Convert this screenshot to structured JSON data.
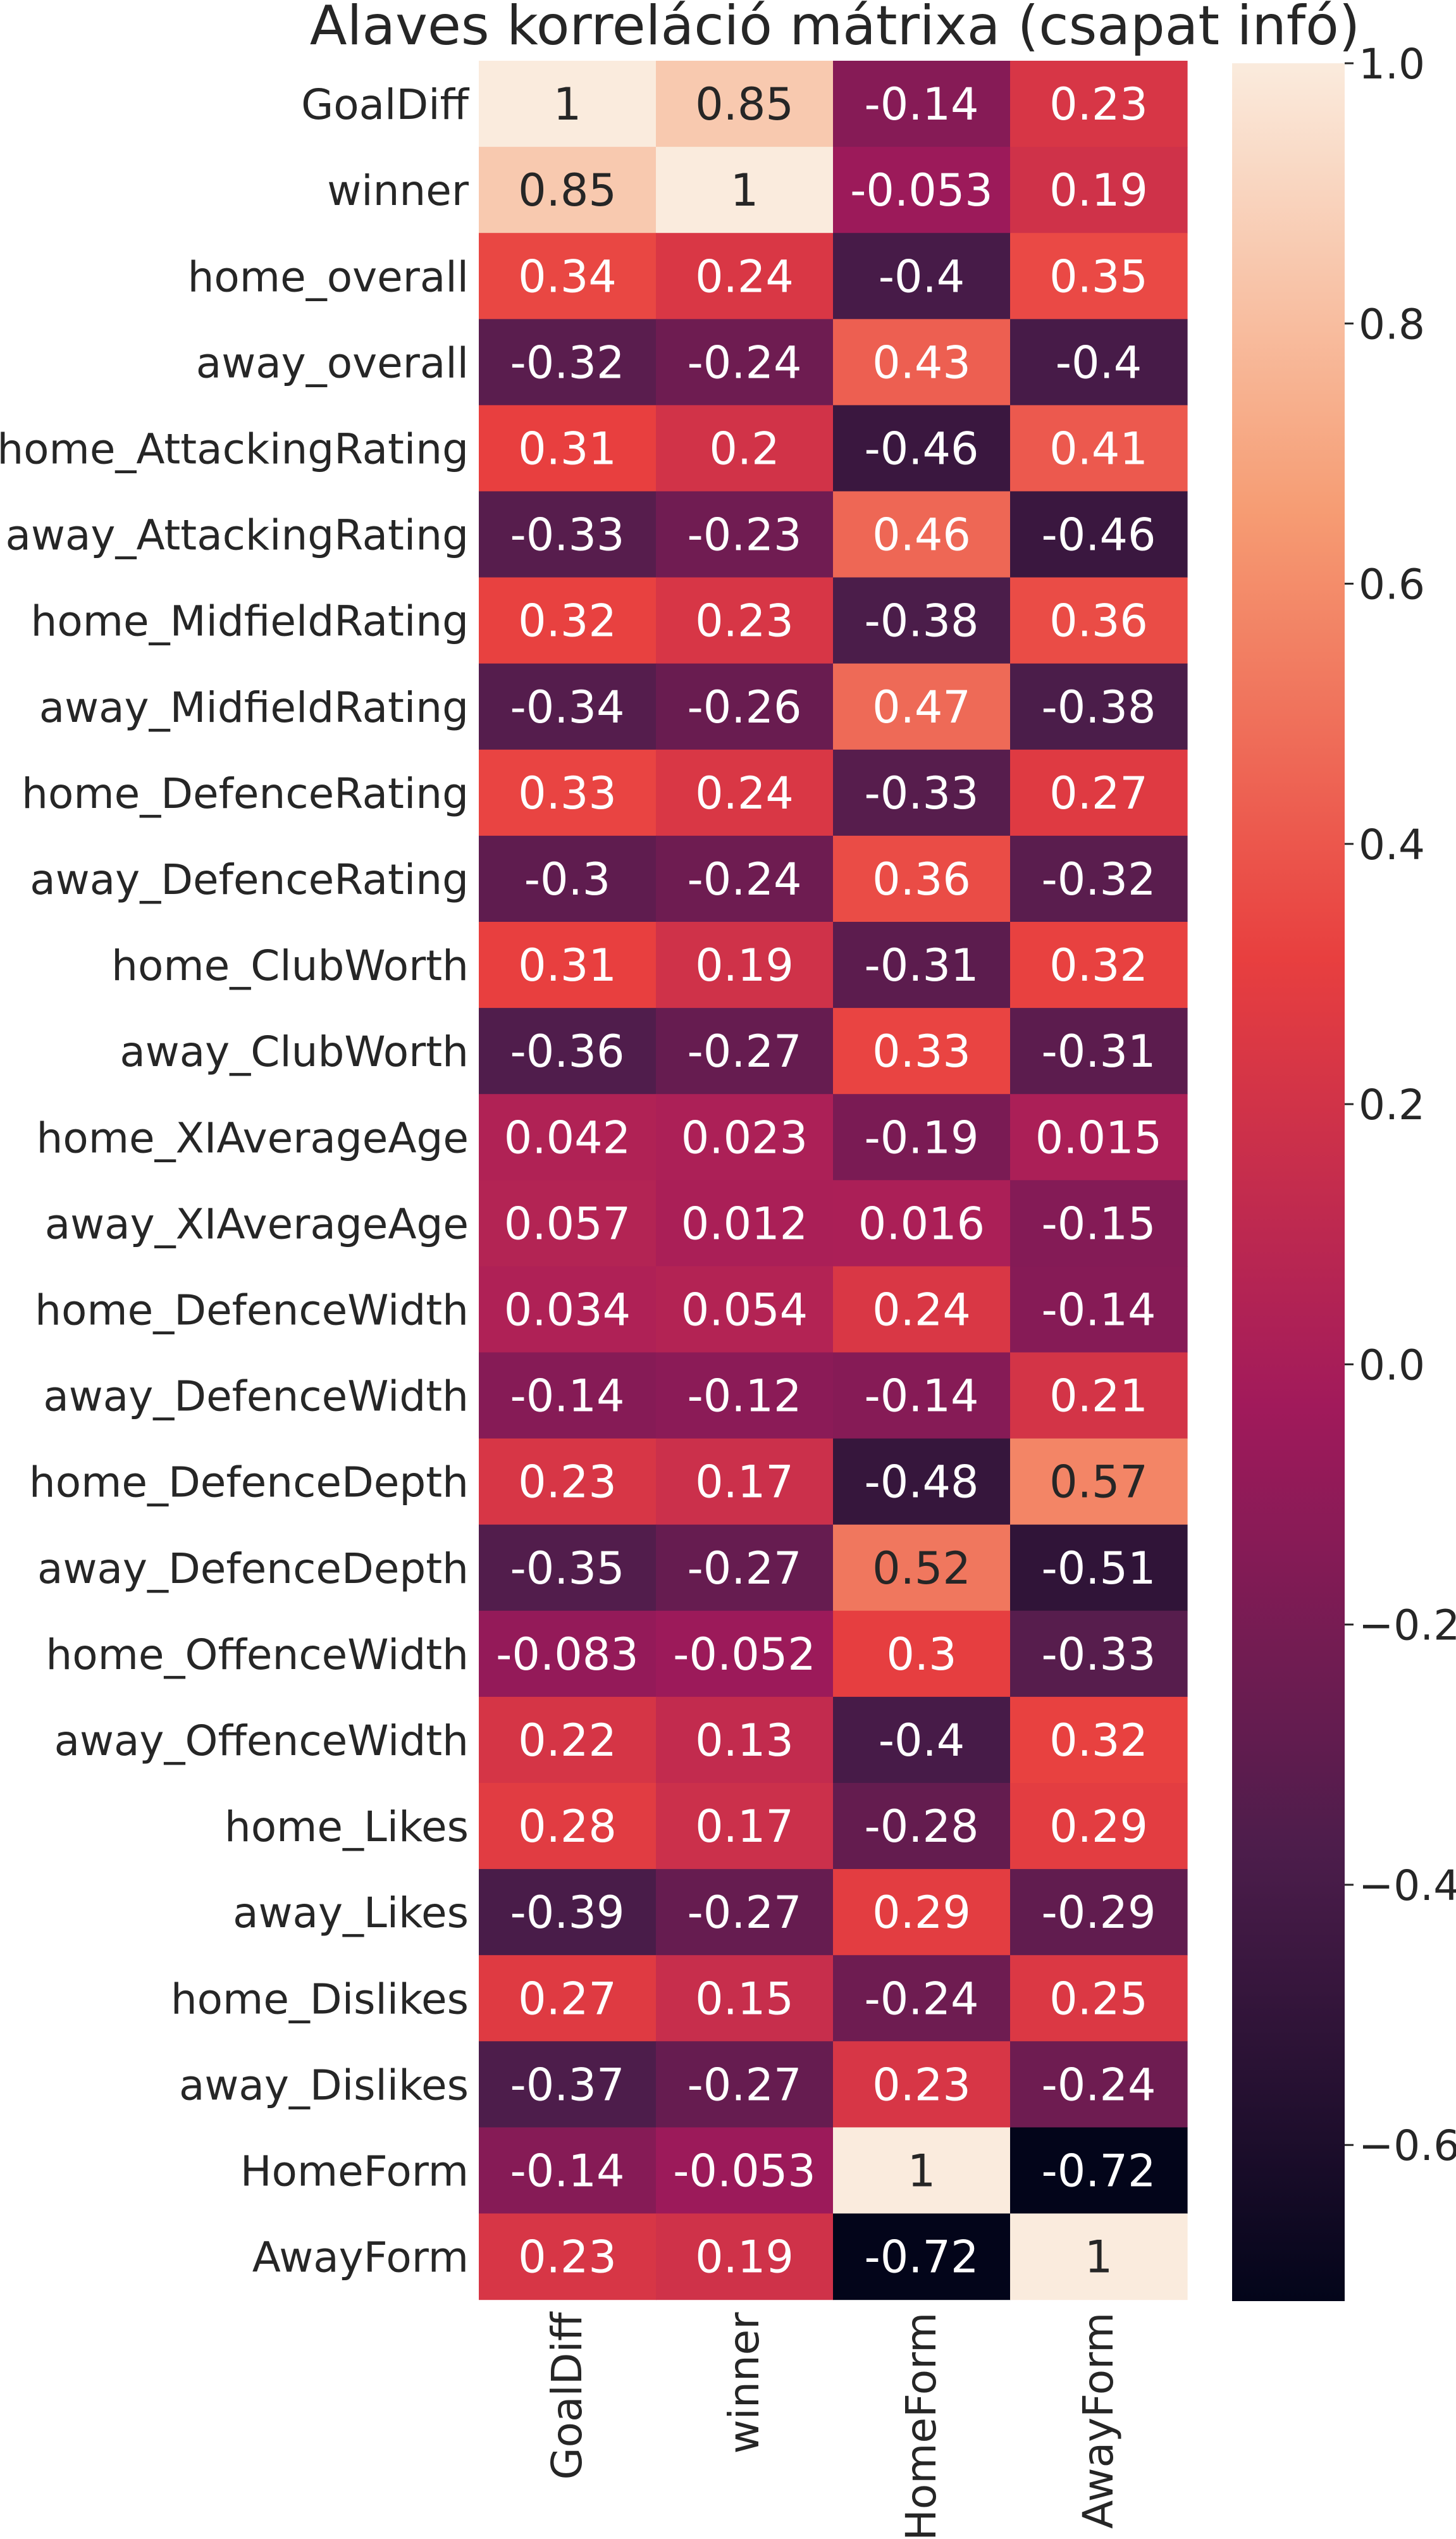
{
  "chart_data": {
    "type": "heatmap",
    "title": "Alaves korreláció mátrixa (csapat infó)",
    "rows": [
      "GoalDiff",
      "winner",
      "home_overall",
      "away_overall",
      "home_AttackingRating",
      "away_AttackingRating",
      "home_MidfieldRating",
      "away_MidfieldRating",
      "home_DefenceRating",
      "away_DefenceRating",
      "home_ClubWorth",
      "away_ClubWorth",
      "home_XIAverageAge",
      "away_XIAverageAge",
      "home_DefenceWidth",
      "away_DefenceWidth",
      "home_DefenceDepth",
      "away_DefenceDepth",
      "home_OffenceWidth",
      "away_OffenceWidth",
      "home_Likes",
      "away_Likes",
      "home_Dislikes",
      "away_Dislikes",
      "HomeForm",
      "AwayForm"
    ],
    "columns": [
      "GoalDiff",
      "winner",
      "HomeForm",
      "AwayForm"
    ],
    "values": [
      [
        1,
        0.85,
        -0.14,
        0.23
      ],
      [
        0.85,
        1,
        -0.053,
        0.19
      ],
      [
        0.34,
        0.24,
        -0.4,
        0.35
      ],
      [
        -0.32,
        -0.24,
        0.43,
        -0.4
      ],
      [
        0.31,
        0.2,
        -0.46,
        0.41
      ],
      [
        -0.33,
        -0.23,
        0.46,
        -0.46
      ],
      [
        0.32,
        0.23,
        -0.38,
        0.36
      ],
      [
        -0.34,
        -0.26,
        0.47,
        -0.38
      ],
      [
        0.33,
        0.24,
        -0.33,
        0.27
      ],
      [
        -0.3,
        -0.24,
        0.36,
        -0.32
      ],
      [
        0.31,
        0.19,
        -0.31,
        0.32
      ],
      [
        -0.36,
        -0.27,
        0.33,
        -0.31
      ],
      [
        0.042,
        0.023,
        -0.19,
        0.015
      ],
      [
        0.057,
        0.012,
        0.016,
        -0.15
      ],
      [
        0.034,
        0.054,
        0.24,
        -0.14
      ],
      [
        -0.14,
        -0.12,
        -0.14,
        0.21
      ],
      [
        0.23,
        0.17,
        -0.48,
        0.57
      ],
      [
        -0.35,
        -0.27,
        0.52,
        -0.51
      ],
      [
        -0.083,
        -0.052,
        0.3,
        -0.33
      ],
      [
        0.22,
        0.13,
        -0.4,
        0.32
      ],
      [
        0.28,
        0.17,
        -0.28,
        0.29
      ],
      [
        -0.39,
        -0.27,
        0.29,
        -0.29
      ],
      [
        0.27,
        0.15,
        -0.24,
        0.25
      ],
      [
        -0.37,
        -0.27,
        0.23,
        -0.24
      ],
      [
        -0.14,
        -0.053,
        1,
        -0.72
      ],
      [
        0.23,
        0.19,
        -0.72,
        1
      ]
    ],
    "color_range": [
      -0.72,
      1.0
    ],
    "colorbar_ticks": [
      1.0,
      0.8,
      0.6,
      0.4,
      0.2,
      0.0,
      -0.2,
      -0.4,
      -0.6
    ],
    "colorbar_tick_labels": [
      "1.0",
      "0.8",
      "0.6",
      "0.4",
      "0.2",
      "0.0",
      "−0.2",
      "−0.4",
      "−0.6"
    ],
    "colormap": [
      "#03051a",
      "#4c1d4b",
      "#a11a5b",
      "#e83f3f",
      "#f69c73",
      "#faebdd"
    ],
    "annotations": "cell values",
    "grid": false
  }
}
